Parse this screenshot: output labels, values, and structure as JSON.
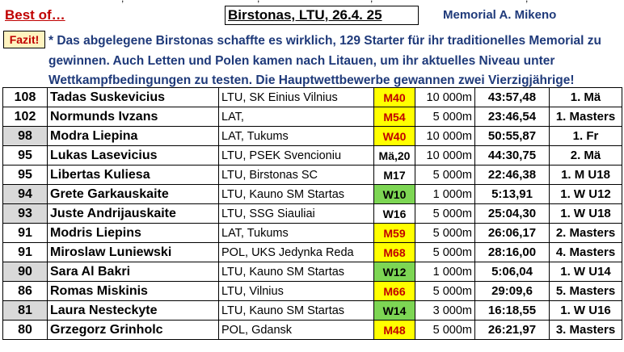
{
  "top_strip": {
    "fragments": [
      ",",
      ",",
      ",",
      ","
    ]
  },
  "header": {
    "best_of": "Best of…",
    "title": "Birstonas, LTU, 26.4. 25",
    "memorial": "Memorial A. Mikeno"
  },
  "fazit": {
    "label": "Fazit!",
    "text": "* Das abgelegene Birstonas schaffte es wirklich, 129 Starter für ihr traditionelles Memorial zu gewinnen. Auch Letten und Polen kamen nach Litauen, um ihr aktuelles Niveau unter Wettkampfbedingungen zu testen. Die Hauptwettbewerbe gewannen zwei Vierzigjährige!"
  },
  "colors": {
    "yellow_cat": "#ffff00",
    "green_cat": "#7dd654",
    "grey_points": "#d9d9d9",
    "red_text": "#c00000",
    "navy_text": "#1f3a7a"
  },
  "rows": [
    {
      "points": "108",
      "name": "Tadas Suskevicius",
      "club": "LTU, SK Einius Vilnius",
      "cat": "M40",
      "cat_style": "y",
      "dist_km": "10",
      "dist_m": "000m",
      "time": "43:57,48",
      "place": "1. Mä",
      "grey": false
    },
    {
      "points": "102",
      "name": "Normunds Ivzans",
      "club": "LAT,",
      "cat": "M54",
      "cat_style": "y",
      "dist_km": "5",
      "dist_m": "000m",
      "time": "23:46,54",
      "place": "1. Masters",
      "grey": false
    },
    {
      "points": "98",
      "name": "Modra Liepina",
      "club": "LAT, Tukums",
      "cat": "W40",
      "cat_style": "y",
      "dist_km": "10",
      "dist_m": "000m",
      "time": "50:55,87",
      "place": "1. Fr",
      "grey": true
    },
    {
      "points": "95",
      "name": "Lukas Lasevicius",
      "club": "LTU, PSEK Svencioniu",
      "cat": "Mä,20",
      "cat_style": "",
      "dist_km": "10",
      "dist_m": "000m",
      "time": "44:30,75",
      "place": "2. Mä",
      "grey": false
    },
    {
      "points": "95",
      "name": "Libertas Kuliesa",
      "club": "LTU, Birstonas SC",
      "cat": "M17",
      "cat_style": "",
      "dist_km": "5",
      "dist_m": "000m",
      "time": "22:46,38",
      "place": "1. M U18",
      "grey": false
    },
    {
      "points": "94",
      "name": "Grete Garkauskaite",
      "club": "LTU, Kauno SM Startas",
      "cat": "W10",
      "cat_style": "g",
      "dist_km": "1",
      "dist_m": "000m",
      "time": "5:13,91",
      "place": "1. W U12",
      "grey": true
    },
    {
      "points": "93",
      "name": "Juste Andrijauskaite",
      "club": "LTU, SSG Siauliai",
      "cat": "W16",
      "cat_style": "",
      "dist_km": "5",
      "dist_m": "000m",
      "time": "25:04,30",
      "place": "1. W U18",
      "grey": true
    },
    {
      "points": "91",
      "name": "Modris Liepins",
      "club": "LAT, Tukums",
      "cat": "M59",
      "cat_style": "y",
      "dist_km": "5",
      "dist_m": "000m",
      "time": "26:06,17",
      "place": "2. Masters",
      "grey": false
    },
    {
      "points": "91",
      "name": "Miroslaw Luniewski",
      "club": "POL, UKS Jedynka Reda",
      "cat": "M68",
      "cat_style": "y",
      "dist_km": "5",
      "dist_m": "000m",
      "time": "28:16,00",
      "place": "4. Masters",
      "grey": false
    },
    {
      "points": "90",
      "name": "Sara Al Bakri",
      "club": "LTU, Kauno SM Startas",
      "cat": "W12",
      "cat_style": "g",
      "dist_km": "1",
      "dist_m": "000m",
      "time": "5:06,04",
      "place": "1. W U14",
      "grey": true
    },
    {
      "points": "86",
      "name": "Romas Miskinis",
      "club": "LTU, Vilnius",
      "cat": "M66",
      "cat_style": "y",
      "dist_km": "5",
      "dist_m": "000m",
      "time": "29:09,6",
      "place": "5. Masters",
      "grey": false
    },
    {
      "points": "81",
      "name": "Laura Nesteckyte",
      "club": "LTU, Kauno SM Startas",
      "cat": "W14",
      "cat_style": "g",
      "dist_km": "3",
      "dist_m": "000m",
      "time": "16:18,55",
      "place": "1. W U16",
      "grey": true
    },
    {
      "points": "80",
      "name": "Grzegorz Grinholc",
      "club": "POL, Gdansk",
      "cat": "M48",
      "cat_style": "y",
      "dist_km": "5",
      "dist_m": "000m",
      "time": "26:21,97",
      "place": "3. Masters",
      "grey": false
    }
  ]
}
